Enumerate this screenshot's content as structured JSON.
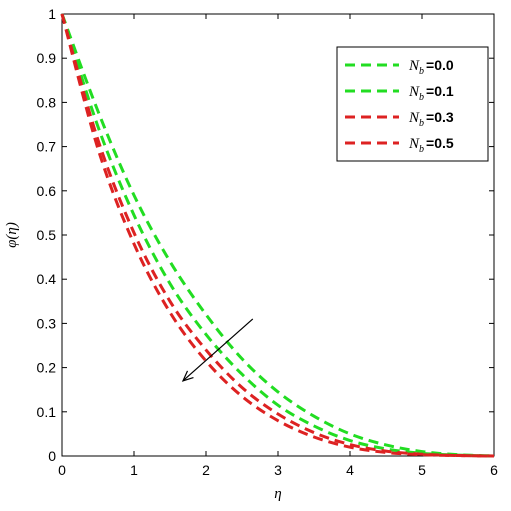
{
  "chart_data": {
    "type": "line",
    "title": "",
    "xlabel": "η",
    "ylabel": "φ(η)",
    "xlim": [
      0,
      6
    ],
    "ylim": [
      0,
      1
    ],
    "xticks": [
      "0",
      "1",
      "2",
      "3",
      "4",
      "5",
      "6"
    ],
    "yticks": [
      "0",
      "0.1",
      "0.2",
      "0.3",
      "0.4",
      "0.5",
      "0.6",
      "0.7",
      "0.8",
      "0.9",
      "1"
    ],
    "grid": false,
    "legend_position": "top-right",
    "line_style": "dashed",
    "x": [
      0,
      0.5,
      1,
      1.5,
      2,
      2.5,
      3,
      3.5,
      4,
      4.5,
      5,
      5.5,
      6
    ],
    "series": [
      {
        "name": "N_b = 0.0",
        "var": "N",
        "sub": "b",
        "val": "=0.0",
        "color": "#22dd22",
        "values": [
          1.0,
          0.78,
          0.59,
          0.44,
          0.32,
          0.22,
          0.145,
          0.09,
          0.05,
          0.025,
          0.01,
          0.003,
          0.0
        ]
      },
      {
        "name": "N_b = 0.1",
        "var": "N",
        "sub": "b",
        "val": "=0.1",
        "color": "#22dd22",
        "values": [
          1.0,
          0.745,
          0.545,
          0.39,
          0.275,
          0.185,
          0.115,
          0.068,
          0.035,
          0.016,
          0.006,
          0.002,
          0.0
        ]
      },
      {
        "name": "N_b = 0.3",
        "var": "N",
        "sub": "b",
        "val": "=0.3",
        "color": "#dd2222",
        "values": [
          1.0,
          0.715,
          0.505,
          0.35,
          0.24,
          0.155,
          0.095,
          0.053,
          0.026,
          0.011,
          0.004,
          0.001,
          0.0
        ]
      },
      {
        "name": "N_b = 0.5",
        "var": "N",
        "sub": "b",
        "val": "=0.5",
        "color": "#dd2222",
        "values": [
          1.0,
          0.695,
          0.48,
          0.325,
          0.215,
          0.135,
          0.08,
          0.043,
          0.02,
          0.008,
          0.003,
          0.001,
          0.0
        ]
      }
    ],
    "annotation": {
      "type": "arrow",
      "from": [
        2.65,
        0.31
      ],
      "to": [
        1.68,
        0.17
      ]
    }
  }
}
